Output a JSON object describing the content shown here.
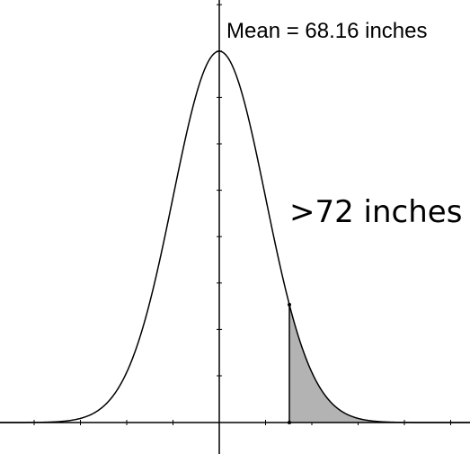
{
  "diagram": {
    "type": "normal-distribution-shaded-tail",
    "mean_label": "Mean = 68.16 inches",
    "region_label": ">72 inches",
    "shaded_region": "right-tail",
    "colors": {
      "curve": "#000000",
      "axes": "#000000",
      "shade": "#b3b3b3",
      "background": "#ffffff"
    }
  }
}
